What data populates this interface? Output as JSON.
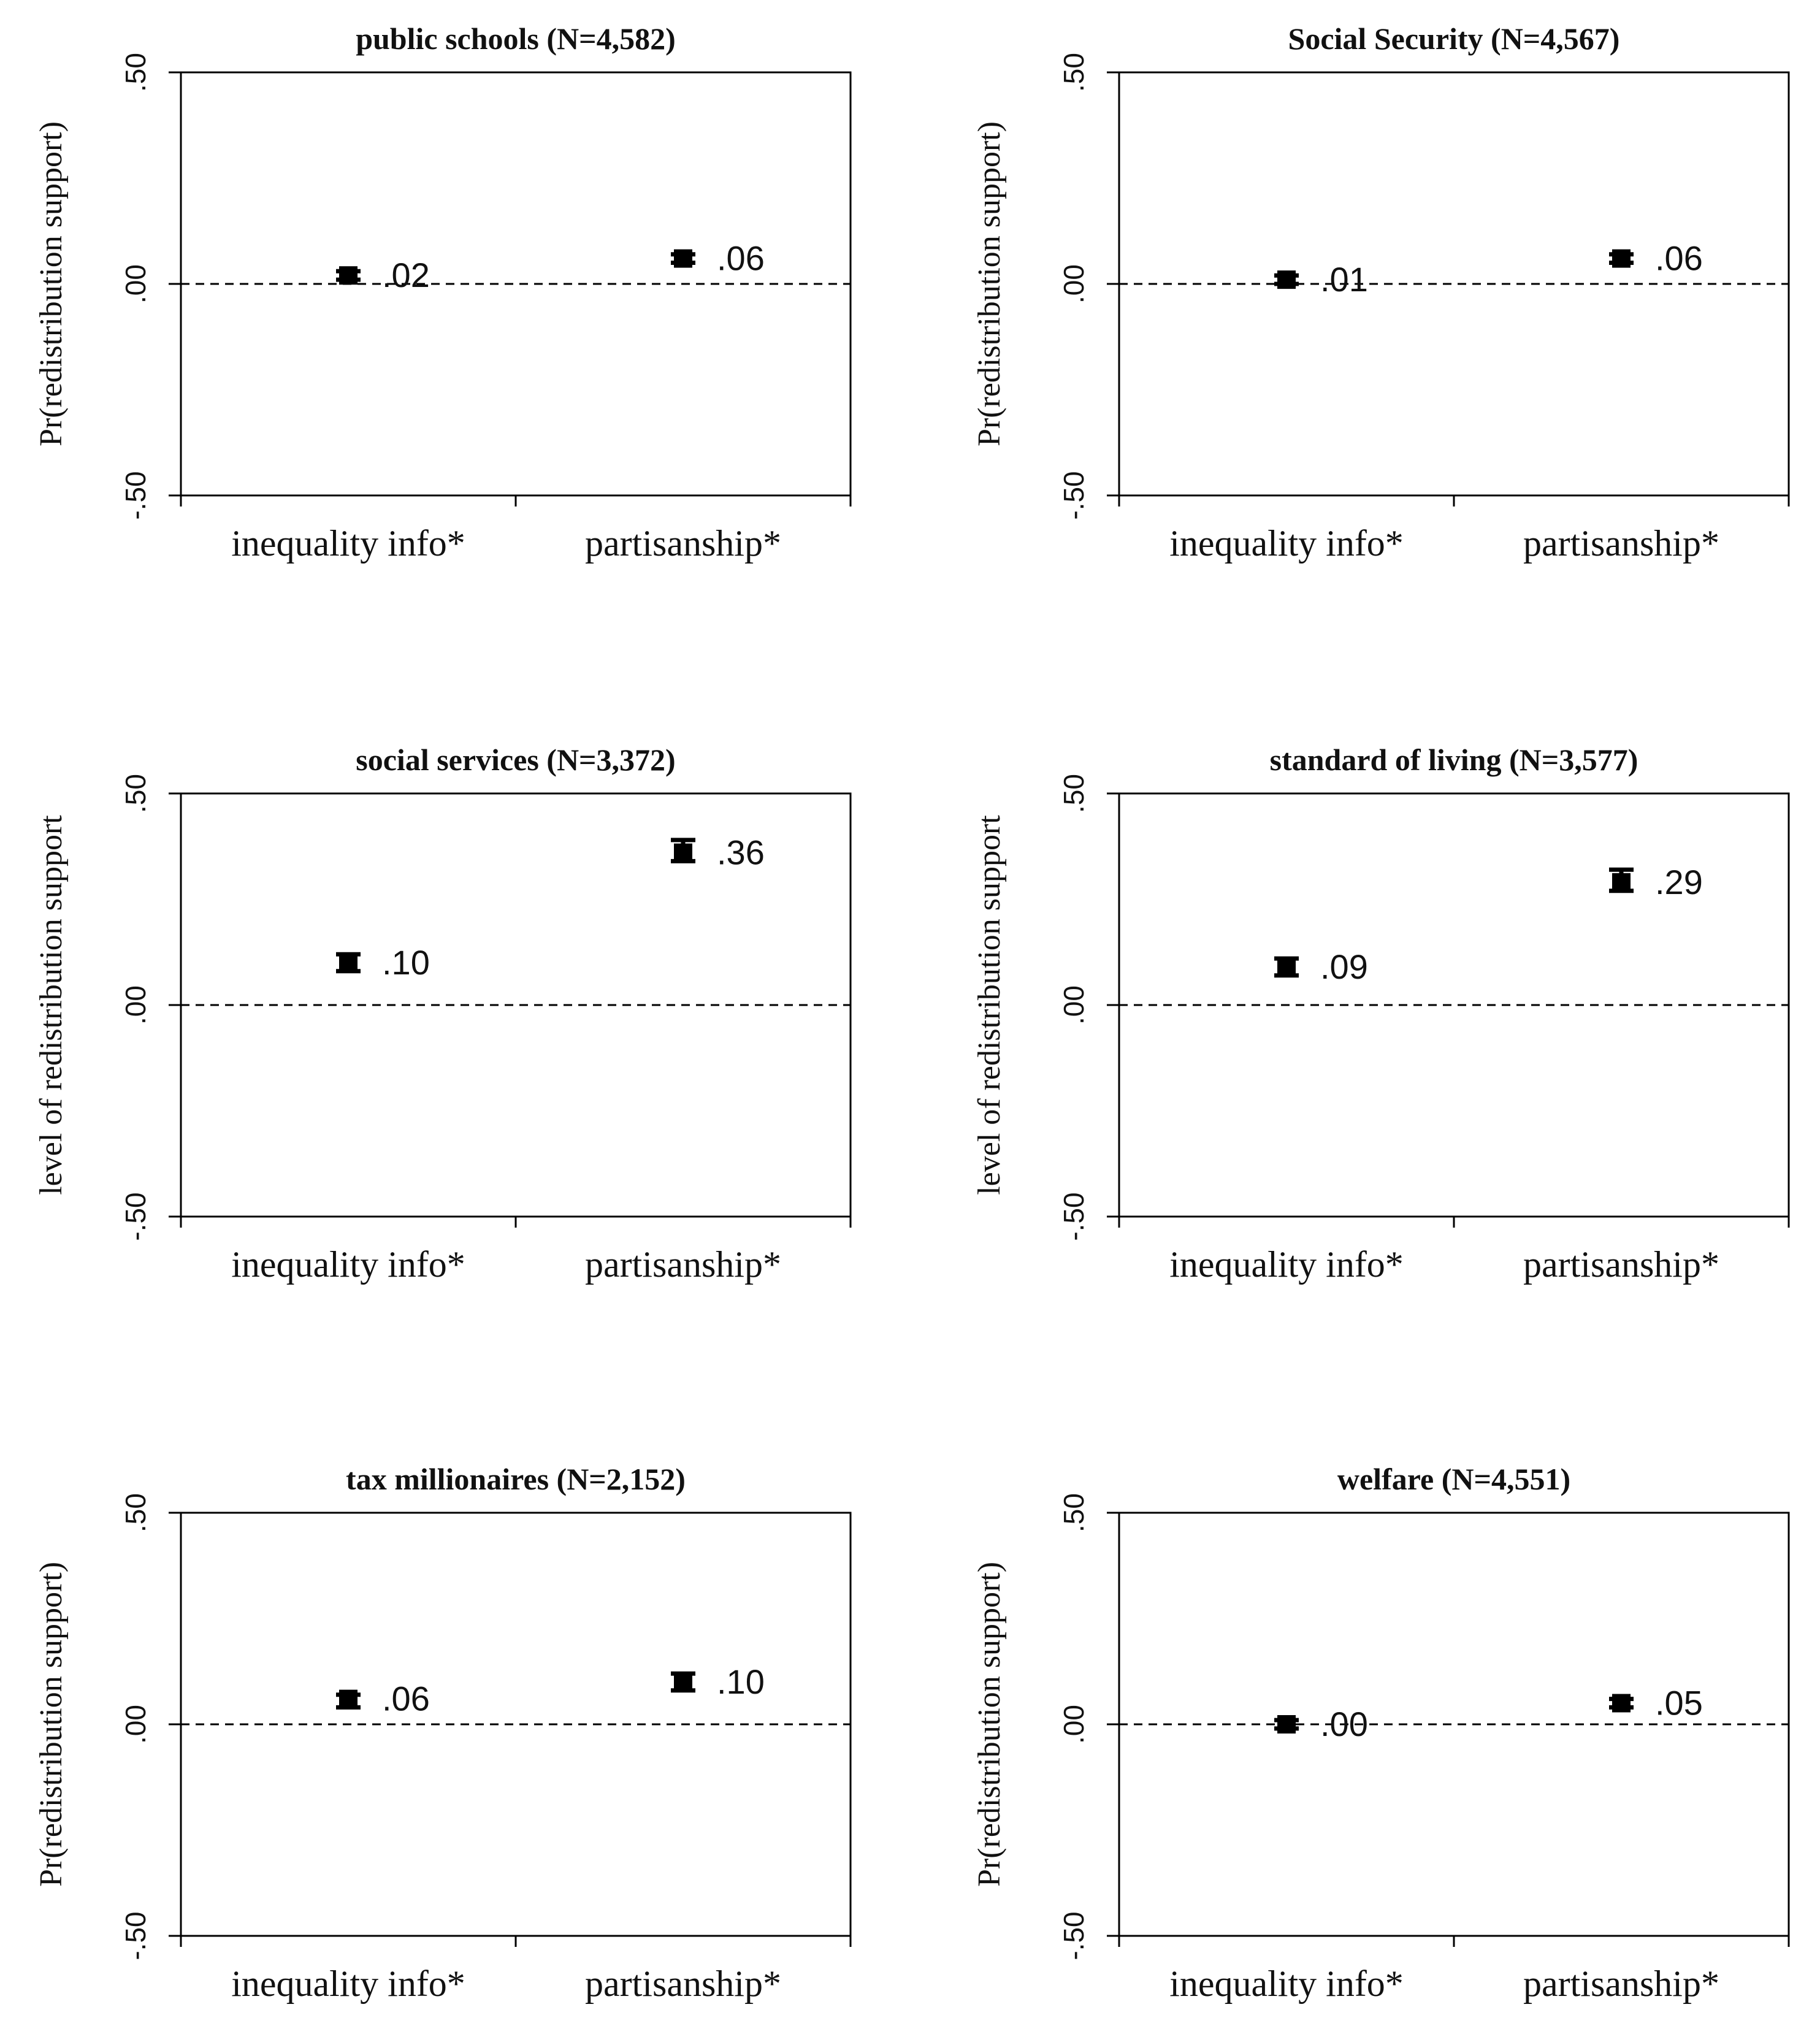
{
  "chart_data": [
    {
      "type": "scatter",
      "title": "public schools (N=4,582)",
      "ylabel": "Pr(redistribution support)",
      "categories": [
        "inequality info*",
        "partisanship*"
      ],
      "values": [
        0.02,
        0.06
      ],
      "value_labels": [
        ".02",
        ".06"
      ],
      "error_low": [
        0.01,
        0.05
      ],
      "error_high": [
        0.03,
        0.07
      ],
      "ylim": [
        -0.5,
        0.5
      ],
      "yticks": [
        "-.50",
        ".00",
        ".50"
      ],
      "reference_line": 0
    },
    {
      "type": "scatter",
      "title": "Social Security (N=4,567)",
      "ylabel": "Pr(redistribution support)",
      "categories": [
        "inequality info*",
        "partisanship*"
      ],
      "values": [
        0.01,
        0.06
      ],
      "value_labels": [
        ".01",
        ".06"
      ],
      "error_low": [
        0.0,
        0.05
      ],
      "error_high": [
        0.02,
        0.07
      ],
      "ylim": [
        -0.5,
        0.5
      ],
      "yticks": [
        "-.50",
        ".00",
        ".50"
      ],
      "reference_line": 0
    },
    {
      "type": "scatter",
      "title": "social services (N=3,372)",
      "ylabel": "level of redistribution support",
      "categories": [
        "inequality info*",
        "partisanship*"
      ],
      "values": [
        0.1,
        0.36
      ],
      "value_labels": [
        ".10",
        ".36"
      ],
      "error_low": [
        0.08,
        0.34
      ],
      "error_high": [
        0.12,
        0.39
      ],
      "ylim": [
        -0.5,
        0.5
      ],
      "yticks": [
        "-.50",
        ".00",
        ".50"
      ],
      "reference_line": 0
    },
    {
      "type": "scatter",
      "title": "standard of living (N=3,577)",
      "ylabel": "level of redistribution support",
      "categories": [
        "inequality info*",
        "partisanship*"
      ],
      "values": [
        0.09,
        0.29
      ],
      "value_labels": [
        ".09",
        ".29"
      ],
      "error_low": [
        0.07,
        0.27
      ],
      "error_high": [
        0.11,
        0.32
      ],
      "ylim": [
        -0.5,
        0.5
      ],
      "yticks": [
        "-.50",
        ".00",
        ".50"
      ],
      "reference_line": 0
    },
    {
      "type": "scatter",
      "title": "tax millionaires (N=2,152)",
      "ylabel": "Pr(redistribution support)",
      "categories": [
        "inequality info*",
        "partisanship*"
      ],
      "values": [
        0.06,
        0.1
      ],
      "value_labels": [
        ".06",
        ".10"
      ],
      "error_low": [
        0.04,
        0.08
      ],
      "error_high": [
        0.07,
        0.12
      ],
      "ylim": [
        -0.5,
        0.5
      ],
      "yticks": [
        "-.50",
        ".00",
        ".50"
      ],
      "reference_line": 0
    },
    {
      "type": "scatter",
      "title": "welfare (N=4,551)",
      "ylabel": "Pr(redistribution support)",
      "categories": [
        "inequality info*",
        "partisanship*"
      ],
      "values": [
        0.0,
        0.05
      ],
      "value_labels": [
        ".00",
        ".05"
      ],
      "error_low": [
        -0.01,
        0.04
      ],
      "error_high": [
        0.01,
        0.06
      ],
      "ylim": [
        -0.5,
        0.5
      ],
      "yticks": [
        "-.50",
        ".00",
        ".50"
      ],
      "reference_line": 0
    }
  ]
}
